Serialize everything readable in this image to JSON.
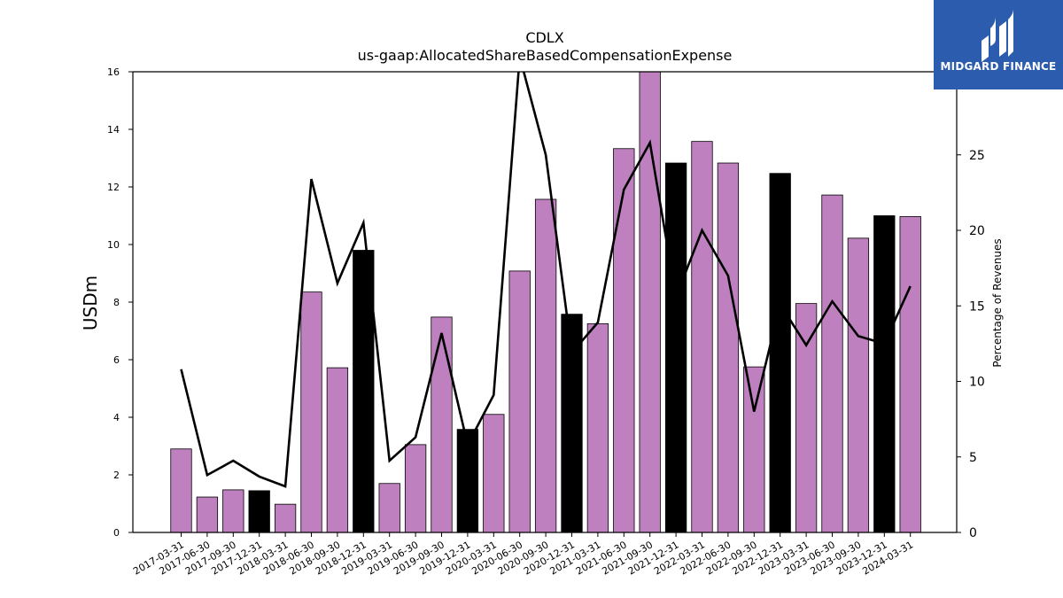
{
  "chart_data": {
    "type": "bar",
    "title": "CDLX",
    "subtitle": "us-gaap:AllocatedShareBasedCompensationExpense",
    "ylabel": "USDm",
    "ylabel_right": "Percentage of Revenues",
    "ylim": [
      0,
      16
    ],
    "ylim_right": [
      0,
      30.5
    ],
    "yticks": [
      0,
      2,
      4,
      6,
      8,
      10,
      12,
      14,
      16
    ],
    "yticks_right": [
      0,
      5,
      10,
      15,
      20,
      25
    ],
    "categories": [
      "2017-03-31",
      "2017-06-30",
      "2017-09-30",
      "2017-12-31",
      "2018-03-31",
      "2018-06-30",
      "2018-09-30",
      "2018-12-31",
      "2019-03-31",
      "2019-06-30",
      "2019-09-30",
      "2019-12-31",
      "2020-03-31",
      "2020-06-30",
      "2020-09-30",
      "2020-12-31",
      "2021-03-31",
      "2021-06-30",
      "2021-09-30",
      "2021-12-31",
      "2022-03-31",
      "2022-06-30",
      "2022-09-30",
      "2022-12-31",
      "2023-03-31",
      "2023-06-30",
      "2023-09-30",
      "2023-12-31",
      "2024-03-31"
    ],
    "series": [
      {
        "type": "bar",
        "values": [
          2.9,
          1.23,
          1.48,
          1.45,
          0.98,
          8.35,
          5.72,
          9.8,
          1.7,
          3.05,
          7.48,
          3.58,
          4.1,
          9.08,
          11.57,
          7.58,
          7.25,
          13.33,
          16.0,
          12.83,
          13.58,
          12.83,
          5.75,
          12.47,
          7.95,
          11.72,
          10.22,
          11.0,
          10.97
        ],
        "highlight_q4": true
      },
      {
        "type": "line",
        "axis": "right",
        "values": [
          10.8,
          3.8,
          4.75,
          3.7,
          3.05,
          23.4,
          16.5,
          20.5,
          4.75,
          6.3,
          13.2,
          5.8,
          9.1,
          31.5,
          25.0,
          11.9,
          13.9,
          22.7,
          25.8,
          15.6,
          20.0,
          17.0,
          8.0,
          15.1,
          12.4,
          15.3,
          13.0,
          12.5,
          16.3
        ]
      }
    ],
    "colors": {
      "bar": "#bf80bf",
      "bar_q4": "#000000",
      "line": "#000000",
      "edge": "#000000"
    },
    "grid": false,
    "legend": "none"
  },
  "logo": {
    "text": "MIDGARD FINANCE",
    "bg": "#2b5cad"
  }
}
